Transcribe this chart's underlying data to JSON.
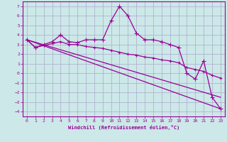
{
  "xlabel": "Windchill (Refroidissement éolien,°C)",
  "background_color": "#cce8e8",
  "grid_color": "#aaaacc",
  "line_color": "#990099",
  "xlim": [
    -0.5,
    23.5
  ],
  "ylim": [
    -4.5,
    7.5
  ],
  "xticks": [
    0,
    1,
    2,
    3,
    4,
    5,
    6,
    7,
    8,
    9,
    10,
    11,
    12,
    13,
    14,
    15,
    16,
    17,
    18,
    19,
    20,
    21,
    22,
    23
  ],
  "yticks": [
    -4,
    -3,
    -2,
    -1,
    0,
    1,
    2,
    3,
    4,
    5,
    6,
    7
  ],
  "series1_x": [
    0,
    1,
    2,
    3,
    4,
    5,
    6,
    7,
    8,
    9,
    10,
    11,
    12,
    13,
    14,
    15,
    16,
    17,
    18,
    19,
    20,
    21,
    22,
    23
  ],
  "series1_y": [
    3.5,
    2.7,
    3.0,
    3.3,
    4.0,
    3.3,
    3.2,
    3.5,
    3.5,
    3.5,
    5.5,
    7.0,
    6.0,
    4.2,
    3.5,
    3.5,
    3.3,
    3.0,
    2.7,
    0.0,
    -0.6,
    1.3,
    -2.5,
    -3.7
  ],
  "series2_x": [
    0,
    1,
    2,
    3,
    4,
    5,
    6,
    7,
    8,
    9,
    10,
    11,
    12,
    13,
    14,
    15,
    16,
    17,
    18,
    19,
    20,
    21,
    22,
    23
  ],
  "series2_y": [
    3.5,
    2.7,
    2.9,
    3.1,
    3.3,
    3.0,
    3.0,
    2.8,
    2.7,
    2.6,
    2.4,
    2.2,
    2.0,
    1.9,
    1.7,
    1.6,
    1.4,
    1.3,
    1.1,
    0.6,
    0.4,
    0.2,
    -0.2,
    -0.5
  ],
  "series3_x": [
    0,
    23
  ],
  "series3_y": [
    3.5,
    -3.7
  ],
  "series4_x": [
    0,
    23
  ],
  "series4_y": [
    3.5,
    -2.5
  ]
}
